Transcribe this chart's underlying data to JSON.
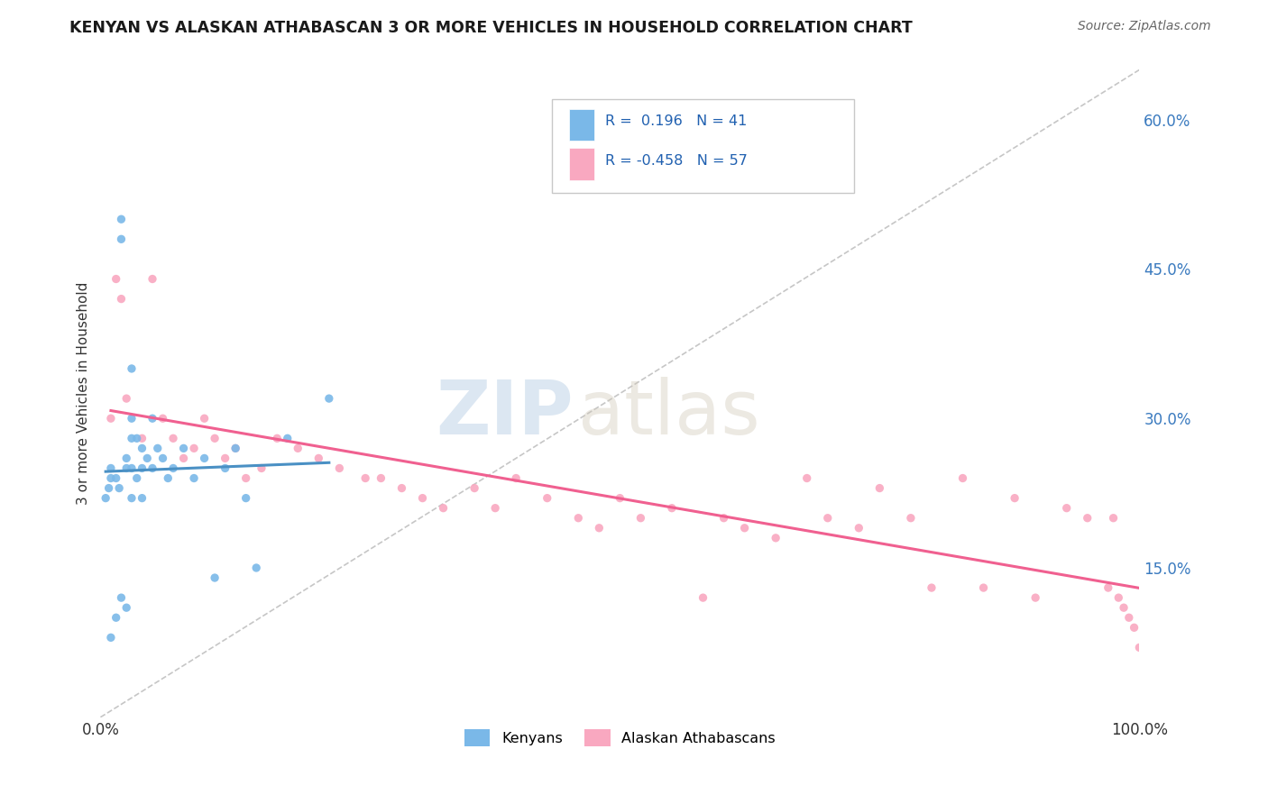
{
  "title": "KENYAN VS ALASKAN ATHABASCAN 3 OR MORE VEHICLES IN HOUSEHOLD CORRELATION CHART",
  "source": "Source: ZipAtlas.com",
  "ylabel": "3 or more Vehicles in Household",
  "ylabel_right_ticks": [
    0.15,
    0.3,
    0.45,
    0.6
  ],
  "ylabel_right_labels": [
    "15.0%",
    "30.0%",
    "45.0%",
    "60.0%"
  ],
  "xmin": 0.0,
  "xmax": 1.0,
  "ymin": 0.0,
  "ymax": 0.65,
  "R_kenyan": 0.196,
  "N_kenyan": 41,
  "R_athabascan": -0.458,
  "N_athabascan": 57,
  "kenyan_color": "#7ab8e8",
  "athabascan_color": "#f9a8c0",
  "kenyan_line_color": "#4a90c4",
  "athabascan_line_color": "#f06090",
  "ref_line_color": "#b8b8b8",
  "legend_label_kenyan": "Kenyans",
  "legend_label_athabascan": "Alaskan Athabascans",
  "watermark_zip": "ZIP",
  "watermark_atlas": "atlas",
  "kenyan_x": [
    0.005,
    0.008,
    0.01,
    0.01,
    0.01,
    0.015,
    0.015,
    0.018,
    0.02,
    0.02,
    0.02,
    0.025,
    0.025,
    0.025,
    0.03,
    0.03,
    0.03,
    0.03,
    0.03,
    0.035,
    0.035,
    0.04,
    0.04,
    0.04,
    0.045,
    0.05,
    0.05,
    0.055,
    0.06,
    0.065,
    0.07,
    0.08,
    0.09,
    0.1,
    0.11,
    0.12,
    0.13,
    0.14,
    0.15,
    0.18,
    0.22
  ],
  "kenyan_y": [
    0.22,
    0.23,
    0.24,
    0.25,
    0.08,
    0.24,
    0.1,
    0.23,
    0.5,
    0.48,
    0.12,
    0.26,
    0.25,
    0.11,
    0.35,
    0.3,
    0.28,
    0.25,
    0.22,
    0.28,
    0.24,
    0.27,
    0.25,
    0.22,
    0.26,
    0.3,
    0.25,
    0.27,
    0.26,
    0.24,
    0.25,
    0.27,
    0.24,
    0.26,
    0.14,
    0.25,
    0.27,
    0.22,
    0.15,
    0.28,
    0.32
  ],
  "athabascan_x": [
    0.01,
    0.015,
    0.02,
    0.025,
    0.04,
    0.05,
    0.06,
    0.07,
    0.08,
    0.09,
    0.1,
    0.11,
    0.12,
    0.13,
    0.14,
    0.155,
    0.17,
    0.19,
    0.21,
    0.23,
    0.255,
    0.27,
    0.29,
    0.31,
    0.33,
    0.36,
    0.38,
    0.4,
    0.43,
    0.46,
    0.48,
    0.5,
    0.52,
    0.55,
    0.58,
    0.6,
    0.62,
    0.65,
    0.68,
    0.7,
    0.73,
    0.75,
    0.78,
    0.8,
    0.83,
    0.85,
    0.88,
    0.9,
    0.93,
    0.95,
    0.97,
    0.975,
    0.98,
    0.985,
    0.99,
    0.995,
    1.0
  ],
  "athabascan_y": [
    0.3,
    0.44,
    0.42,
    0.32,
    0.28,
    0.44,
    0.3,
    0.28,
    0.26,
    0.27,
    0.3,
    0.28,
    0.26,
    0.27,
    0.24,
    0.25,
    0.28,
    0.27,
    0.26,
    0.25,
    0.24,
    0.24,
    0.23,
    0.22,
    0.21,
    0.23,
    0.21,
    0.24,
    0.22,
    0.2,
    0.19,
    0.22,
    0.2,
    0.21,
    0.12,
    0.2,
    0.19,
    0.18,
    0.24,
    0.2,
    0.19,
    0.23,
    0.2,
    0.13,
    0.24,
    0.13,
    0.22,
    0.12,
    0.21,
    0.2,
    0.13,
    0.2,
    0.12,
    0.11,
    0.1,
    0.09,
    0.07
  ]
}
